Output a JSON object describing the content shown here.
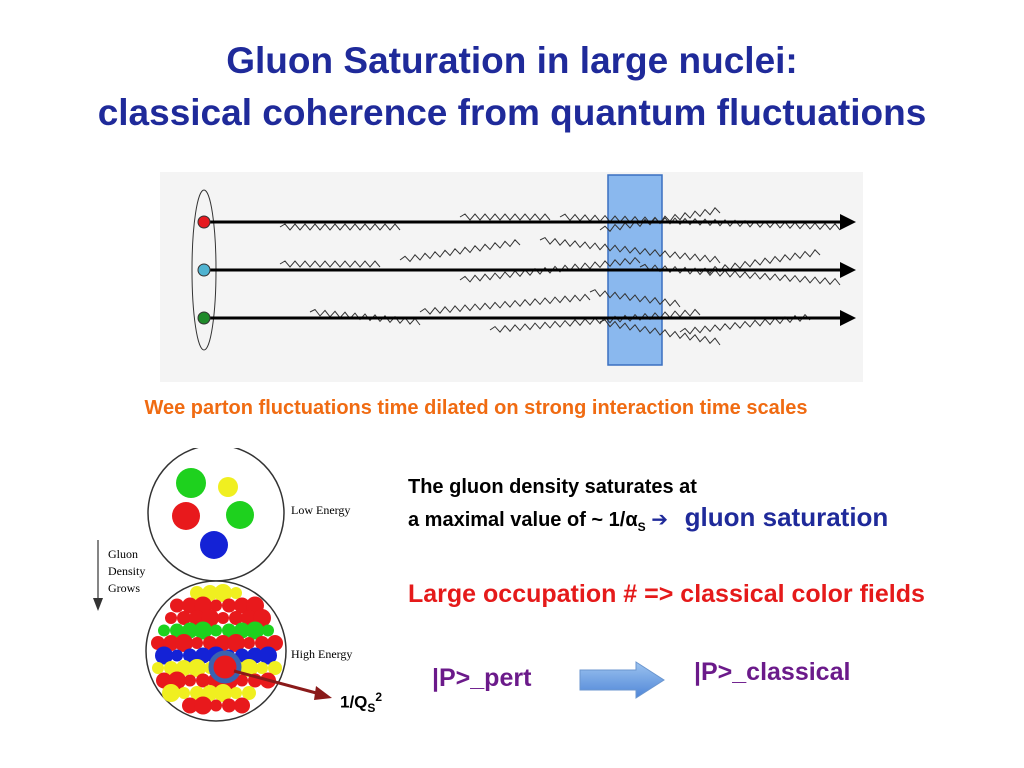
{
  "slide": {
    "title_line1": "Gluon Saturation in large nuclei:",
    "title_line2": "classical coherence from quantum fluctuations",
    "caption": "Wee parton fluctuations time dilated on strong interaction time scales"
  },
  "figure_top": {
    "parton_colors": [
      "#e5191f",
      "#4fb3d1",
      "#1f8a2a"
    ],
    "band_color": "#8ab8ee"
  },
  "figure_bottom": {
    "low_energy_label": "Low Energy",
    "high_energy_label": "High Energy",
    "grows_label_1": "Gluon",
    "grows_label_2": "Density",
    "grows_label_3": "Grows",
    "qs_label": "1/Q",
    "qs_sub": "S",
    "qs_sup": "2"
  },
  "text": {
    "density_line1": "The gluon density saturates at",
    "density_line2": "a maximal value of ~ 1/α",
    "density_sub": "S",
    "saturation": "gluon saturation",
    "occupation": "Large occupation #  => classical color fields",
    "state_pert": "|P>_pert",
    "state_classical": "|P>_classical"
  }
}
